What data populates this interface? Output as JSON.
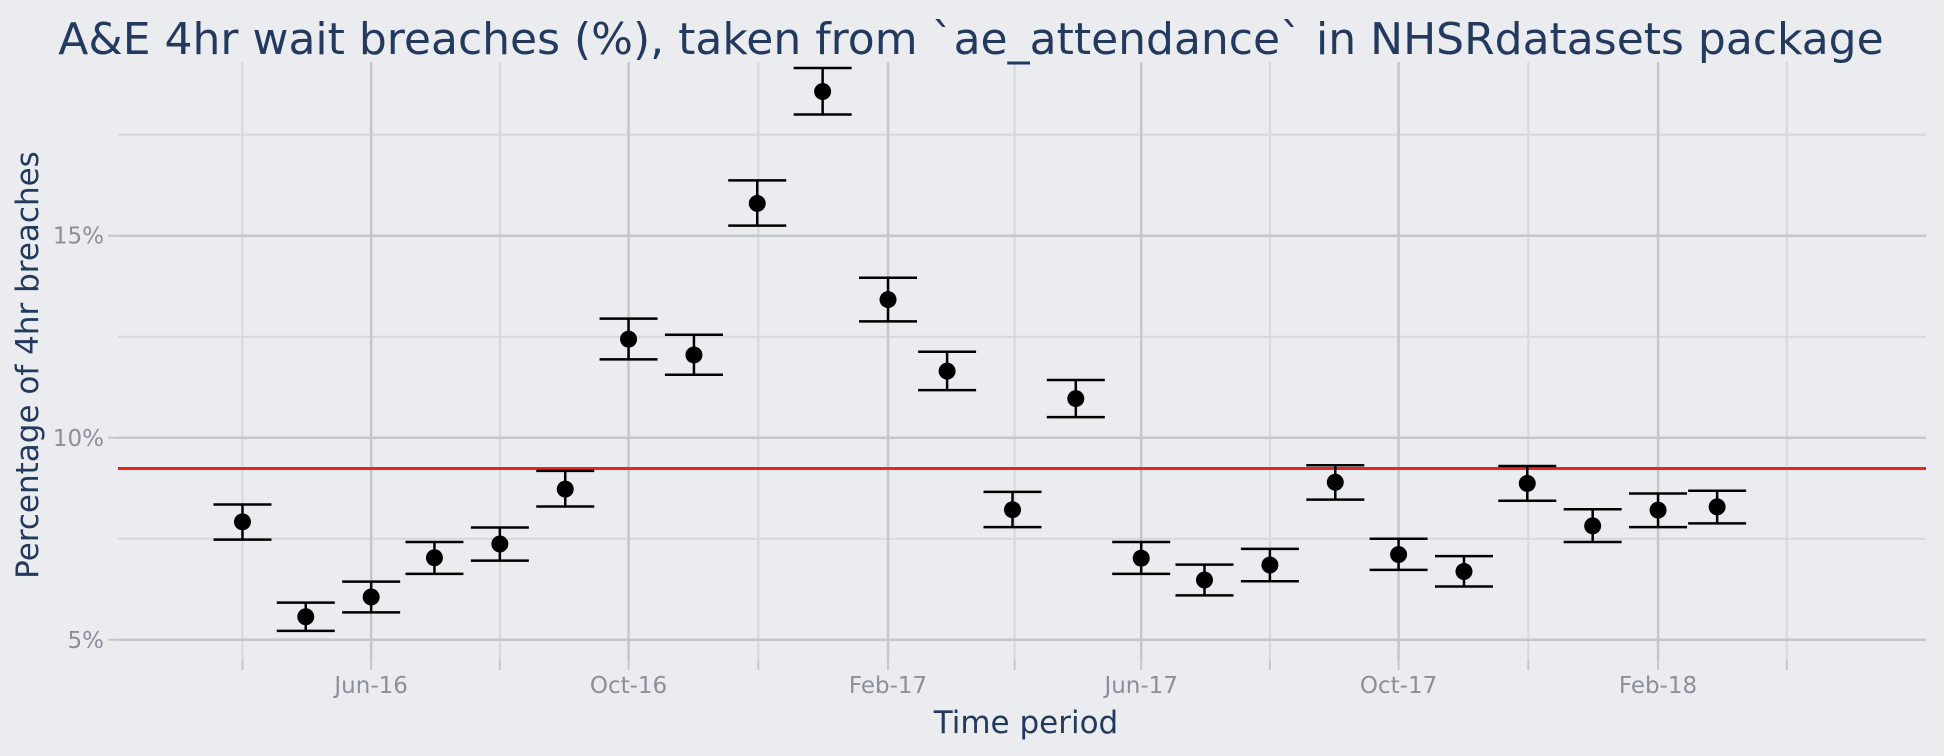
{
  "chart_data": {
    "type": "scatter",
    "title": "A&E 4hr wait breaches (%), taken from `ae_attendance` in NHSRdatasets package",
    "xlabel": "Time period",
    "ylabel": "Percentage of 4hr breaches",
    "x_ticks": [
      {
        "date": "2016-06-01",
        "label": "Jun-16"
      },
      {
        "date": "2016-10-01",
        "label": "Oct-16"
      },
      {
        "date": "2017-02-01",
        "label": "Feb-17"
      },
      {
        "date": "2017-06-01",
        "label": "Jun-17"
      },
      {
        "date": "2017-10-01",
        "label": "Oct-17"
      },
      {
        "date": "2018-02-01",
        "label": "Feb-18"
      }
    ],
    "y_ticks": [
      {
        "value": 5,
        "label": "5%"
      },
      {
        "value": 10,
        "label": "10%"
      },
      {
        "value": 15,
        "label": "15%"
      }
    ],
    "xlim": [
      "2016-02-02",
      "2018-06-08"
    ],
    "ylim": [
      4.5,
      19.3
    ],
    "grid": true,
    "reference_line": {
      "value": 9.24,
      "color": "#e8261c"
    },
    "points": [
      {
        "date": "2016-04-01",
        "value": 7.92,
        "low": 7.48,
        "high": 8.35
      },
      {
        "date": "2016-05-01",
        "value": 5.57,
        "low": 5.22,
        "high": 5.92
      },
      {
        "date": "2016-06-01",
        "value": 6.06,
        "low": 5.68,
        "high": 6.44
      },
      {
        "date": "2016-07-01",
        "value": 7.03,
        "low": 6.63,
        "high": 7.42
      },
      {
        "date": "2016-08-01",
        "value": 7.37,
        "low": 6.96,
        "high": 7.78
      },
      {
        "date": "2016-09-01",
        "value": 8.73,
        "low": 8.3,
        "high": 9.18
      },
      {
        "date": "2016-10-01",
        "value": 12.44,
        "low": 11.94,
        "high": 12.95
      },
      {
        "date": "2016-11-01",
        "value": 12.05,
        "low": 11.56,
        "high": 12.55
      },
      {
        "date": "2016-12-01",
        "value": 15.8,
        "low": 15.25,
        "high": 16.37
      },
      {
        "date": "2017-01-01",
        "value": 18.57,
        "low": 18.0,
        "high": 19.15
      },
      {
        "date": "2017-02-01",
        "value": 13.42,
        "low": 12.88,
        "high": 13.96
      },
      {
        "date": "2017-03-01",
        "value": 11.65,
        "low": 11.18,
        "high": 12.13
      },
      {
        "date": "2017-04-01",
        "value": 8.22,
        "low": 7.79,
        "high": 8.66
      },
      {
        "date": "2017-05-01",
        "value": 10.97,
        "low": 10.51,
        "high": 11.43
      },
      {
        "date": "2017-06-01",
        "value": 7.02,
        "low": 6.63,
        "high": 7.42
      },
      {
        "date": "2017-07-01",
        "value": 6.48,
        "low": 6.1,
        "high": 6.86
      },
      {
        "date": "2017-08-01",
        "value": 6.85,
        "low": 6.45,
        "high": 7.25
      },
      {
        "date": "2017-09-01",
        "value": 8.9,
        "low": 8.47,
        "high": 9.32
      },
      {
        "date": "2017-10-01",
        "value": 7.11,
        "low": 6.73,
        "high": 7.5
      },
      {
        "date": "2017-11-01",
        "value": 6.69,
        "low": 6.32,
        "high": 7.07
      },
      {
        "date": "2017-12-01",
        "value": 8.87,
        "low": 8.44,
        "high": 9.3
      },
      {
        "date": "2018-01-01",
        "value": 7.82,
        "low": 7.42,
        "high": 8.23
      },
      {
        "date": "2018-02-01",
        "value": 8.21,
        "low": 7.79,
        "high": 8.62
      },
      {
        "date": "2018-03-01",
        "value": 8.29,
        "low": 7.88,
        "high": 8.69
      }
    ],
    "colors": {
      "background": "#ebecf0",
      "grid_major": "#c4c7cc",
      "grid_minor": "#d6d8dd",
      "point": "#000000",
      "title": "#233a5e",
      "tick_label": "#8a8f9a"
    }
  }
}
